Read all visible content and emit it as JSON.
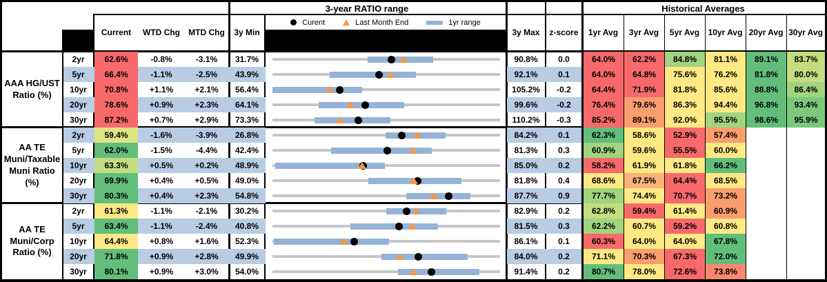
{
  "titles": {
    "range_chart": "3-year RATIO range",
    "historical": "Historical Averages"
  },
  "legend": {
    "current": "Curent",
    "last_month_end": "Last Month End",
    "range_1yr": "1yr range"
  },
  "columns": {
    "current": "Current",
    "wtd": "WTD Chg",
    "mtd": "MTD Chg",
    "min3y": "3y Min",
    "max3y": "3y Max",
    "zscore": "z-score",
    "averages": [
      "1yr Avg",
      "3yr Avg",
      "5yr Avg",
      "10yr Avg",
      "20yr Avg",
      "30yr Avg"
    ]
  },
  "palette": {
    "red": "#F8696B",
    "salmon": "#F9876F",
    "orange": "#FA9D6F",
    "light_orange": "#FBB277",
    "yellow": "#FFE984",
    "pale_yellow_green": "#DDE583",
    "yellow_green": "#C4DD81",
    "light_green": "#A0D47F",
    "medium_green": "#7CC87D",
    "green": "#63BE7B",
    "row_blue": "#B8CCE4",
    "bar_blue": "#95B3D7",
    "line_gray": "#C6C6C8",
    "marker_orange": "#F79646",
    "marker_black": "#000000"
  },
  "chart_data": {
    "type": "table",
    "note_range_plot": "each row range plot spans its own 3y min to 3y max; bar_1yr is the 1yr range band; markers: current (black dot), last_month_end (orange triangle)",
    "groups": [
      {
        "label": "AAA HG/UST\nRatio (%)",
        "rows": [
          {
            "tenor": "2yr",
            "current": "62.6%",
            "current_color": "red",
            "wtd_chg": "-0.8%",
            "mtd_chg": "-3.1%",
            "min_3y": "31.7%",
            "max_3y": "90.8%",
            "z_score": "0.0",
            "averages": [
              {
                "value": "64.0%",
                "color": "red"
              },
              {
                "value": "62.2%",
                "color": "red"
              },
              {
                "value": "84.8%",
                "color": "light_green"
              },
              {
                "value": "81.1%",
                "color": "yellow"
              },
              {
                "value": "89.1%",
                "color": "green"
              },
              {
                "value": "83.7%",
                "color": "yellow_green"
              }
            ],
            "range_plot": {
              "min": 31.7,
              "max": 90.8,
              "current": 62.6,
              "last_month_end": 65.7,
              "bar_1yr": [
                56.4,
                73.4
              ]
            }
          },
          {
            "tenor": "5yr",
            "current": "66.4%",
            "current_color": "red",
            "wtd_chg": "-1.1%",
            "mtd_chg": "-2.5%",
            "min_3y": "43.9%",
            "max_3y": "92.1%",
            "z_score": "0.1",
            "averages": [
              {
                "value": "64.0%",
                "color": "red"
              },
              {
                "value": "64.8%",
                "color": "red"
              },
              {
                "value": "75.6%",
                "color": "yellow"
              },
              {
                "value": "76.2%",
                "color": "yellow"
              },
              {
                "value": "81.8%",
                "color": "green"
              },
              {
                "value": "80.0%",
                "color": "yellow_green"
              }
            ],
            "range_plot": {
              "min": 43.9,
              "max": 92.1,
              "current": 66.4,
              "last_month_end": 68.9,
              "bar_1yr": [
                56.0,
                74.3
              ]
            }
          },
          {
            "tenor": "10yr",
            "current": "70.8%",
            "current_color": "red",
            "wtd_chg": "+1.1%",
            "mtd_chg": "+2.1%",
            "min_3y": "56.4%",
            "max_3y": "105.2%",
            "z_score": "-0.2",
            "averages": [
              {
                "value": "64.4%",
                "color": "red"
              },
              {
                "value": "71.9%",
                "color": "red"
              },
              {
                "value": "81.8%",
                "color": "yellow"
              },
              {
                "value": "85.6%",
                "color": "yellow"
              },
              {
                "value": "88.8%",
                "color": "green"
              },
              {
                "value": "86.4%",
                "color": "light_green"
              }
            ],
            "range_plot": {
              "min": 56.4,
              "max": 105.2,
              "current": 70.8,
              "last_month_end": 68.7,
              "bar_1yr": [
                56.4,
                75.6
              ]
            }
          },
          {
            "tenor": "20yr",
            "current": "78.6%",
            "current_color": "red",
            "wtd_chg": "+0.9%",
            "mtd_chg": "+2.3%",
            "min_3y": "64.1%",
            "max_3y": "99.6%",
            "z_score": "-0.2",
            "averages": [
              {
                "value": "76.4%",
                "color": "red"
              },
              {
                "value": "79.6%",
                "color": "orange"
              },
              {
                "value": "86.3%",
                "color": "yellow"
              },
              {
                "value": "94.4%",
                "color": "yellow"
              },
              {
                "value": "96.8%",
                "color": "green"
              },
              {
                "value": "93.4%",
                "color": "medium_green"
              }
            ],
            "range_plot": {
              "min": 64.1,
              "max": 99.6,
              "current": 78.6,
              "last_month_end": 76.3,
              "bar_1yr": [
                71.3,
                84.7
              ]
            }
          },
          {
            "tenor": "30yr",
            "current": "87.2%",
            "current_color": "red",
            "wtd_chg": "+0.7%",
            "mtd_chg": "+2.9%",
            "min_3y": "73.3%",
            "max_3y": "110.2%",
            "z_score": "-0.3",
            "averages": [
              {
                "value": "85.2%",
                "color": "red"
              },
              {
                "value": "89.1%",
                "color": "orange"
              },
              {
                "value": "92.0%",
                "color": "yellow"
              },
              {
                "value": "95.5%",
                "color": "light_green"
              },
              {
                "value": "98.6%",
                "color": "green"
              },
              {
                "value": "95.9%",
                "color": "medium_green"
              }
            ],
            "range_plot": {
              "min": 73.3,
              "max": 110.2,
              "current": 87.2,
              "last_month_end": 84.3,
              "bar_1yr": [
                80.1,
                92.4
              ]
            }
          }
        ]
      },
      {
        "label": "AA TE\nMuni/Taxable\nMuni Ratio\n(%)",
        "rows": [
          {
            "tenor": "2yr",
            "current": "59.4%",
            "current_color": "pale_yellow_green",
            "wtd_chg": "-1.6%",
            "mtd_chg": "-3.9%",
            "min_3y": "26.8%",
            "max_3y": "84.2%",
            "z_score": "0.1",
            "averages": [
              {
                "value": "62.3%",
                "color": "green"
              },
              {
                "value": "58.6%",
                "color": "yellow"
              },
              {
                "value": "52.9%",
                "color": "red"
              },
              {
                "value": "57.4%",
                "color": "orange"
              },
              {
                "value": "",
                "color": "none"
              },
              {
                "value": "",
                "color": "none"
              }
            ],
            "range_plot": {
              "min": 26.8,
              "max": 84.2,
              "current": 59.4,
              "last_month_end": 63.3,
              "bar_1yr": [
                55.4,
                70.5
              ]
            }
          },
          {
            "tenor": "5yr",
            "current": "62.0%",
            "current_color": "green",
            "wtd_chg": "-1.5%",
            "mtd_chg": "-4.4%",
            "min_3y": "42.4%",
            "max_3y": "81.3%",
            "z_score": "0.3",
            "averages": [
              {
                "value": "60.9%",
                "color": "light_green"
              },
              {
                "value": "59.6%",
                "color": "yellow"
              },
              {
                "value": "55.5%",
                "color": "red"
              },
              {
                "value": "60.0%",
                "color": "yellow"
              },
              {
                "value": "",
                "color": "none"
              },
              {
                "value": "",
                "color": "none"
              }
            ],
            "range_plot": {
              "min": 42.4,
              "max": 81.3,
              "current": 62.0,
              "last_month_end": 66.4,
              "bar_1yr": [
                52.4,
                69.6
              ]
            }
          },
          {
            "tenor": "10yr",
            "current": "63.3%",
            "current_color": "yellow_green",
            "wtd_chg": "+0.5%",
            "mtd_chg": "+0.2%",
            "min_3y": "48.9%",
            "max_3y": "85.0%",
            "z_score": "0.2",
            "averages": [
              {
                "value": "58.2%",
                "color": "red"
              },
              {
                "value": "61.9%",
                "color": "yellow"
              },
              {
                "value": "61.8%",
                "color": "yellow"
              },
              {
                "value": "66.2%",
                "color": "green"
              },
              {
                "value": "",
                "color": "none"
              },
              {
                "value": "",
                "color": "none"
              }
            ],
            "range_plot": {
              "min": 48.9,
              "max": 85.0,
              "current": 63.3,
              "last_month_end": 63.1,
              "bar_1yr": [
                49.3,
                66.7
              ]
            }
          },
          {
            "tenor": "20yr",
            "current": "69.9%",
            "current_color": "green",
            "wtd_chg": "+0.4%",
            "mtd_chg": "+0.5%",
            "min_3y": "49.0%",
            "max_3y": "81.8%",
            "z_score": "0.4",
            "averages": [
              {
                "value": "68.6%",
                "color": "yellow"
              },
              {
                "value": "67.5%",
                "color": "light_orange"
              },
              {
                "value": "64.4%",
                "color": "red"
              },
              {
                "value": "68.5%",
                "color": "yellow"
              },
              {
                "value": "",
                "color": "none"
              },
              {
                "value": "",
                "color": "none"
              }
            ],
            "range_plot": {
              "min": 49.0,
              "max": 81.8,
              "current": 69.9,
              "last_month_end": 69.4,
              "bar_1yr": [
                62.8,
                76.2
              ]
            }
          },
          {
            "tenor": "30yr",
            "current": "80.3%",
            "current_color": "green",
            "wtd_chg": "+0.4%",
            "mtd_chg": "+2.3%",
            "min_3y": "54.8%",
            "max_3y": "87.7%",
            "z_score": "0.9",
            "averages": [
              {
                "value": "77.7%",
                "color": "light_green"
              },
              {
                "value": "74.4%",
                "color": "yellow"
              },
              {
                "value": "70.7%",
                "color": "red"
              },
              {
                "value": "73.2%",
                "color": "orange"
              },
              {
                "value": "",
                "color": "none"
              },
              {
                "value": "",
                "color": "none"
              }
            ],
            "range_plot": {
              "min": 54.8,
              "max": 87.7,
              "current": 80.3,
              "last_month_end": 78.0,
              "bar_1yr": [
                74.1,
                83.4
              ]
            }
          }
        ]
      },
      {
        "label": "AA TE\nMuni/Corp\nRatio (%)",
        "rows": [
          {
            "tenor": "2yr",
            "current": "61.3%",
            "current_color": "yellow",
            "wtd_chg": "-1.1%",
            "mtd_chg": "-2.1%",
            "min_3y": "30.2%",
            "max_3y": "82.9%",
            "z_score": "0.2",
            "averages": [
              {
                "value": "62.8%",
                "color": "yellow_green"
              },
              {
                "value": "59.4%",
                "color": "red"
              },
              {
                "value": "61.4%",
                "color": "yellow"
              },
              {
                "value": "60.9%",
                "color": "orange"
              },
              {
                "value": "",
                "color": "none"
              },
              {
                "value": "",
                "color": "none"
              }
            ],
            "range_plot": {
              "min": 30.2,
              "max": 82.9,
              "current": 61.3,
              "last_month_end": 63.4,
              "bar_1yr": [
                56.5,
                70.5
              ]
            }
          },
          {
            "tenor": "5yr",
            "current": "63.4%",
            "current_color": "green",
            "wtd_chg": "-1.1%",
            "mtd_chg": "-2.4%",
            "min_3y": "40.8%",
            "max_3y": "81.5%",
            "z_score": "0.3",
            "averages": [
              {
                "value": "62.2%",
                "color": "light_green"
              },
              {
                "value": "60.7%",
                "color": "yellow"
              },
              {
                "value": "59.2%",
                "color": "red"
              },
              {
                "value": "60.8%",
                "color": "yellow"
              },
              {
                "value": "",
                "color": "none"
              },
              {
                "value": "",
                "color": "none"
              }
            ],
            "range_plot": {
              "min": 40.8,
              "max": 81.5,
              "current": 63.4,
              "last_month_end": 65.8,
              "bar_1yr": [
                54.7,
                70.4
              ]
            }
          },
          {
            "tenor": "10yr",
            "current": "64.4%",
            "current_color": "yellow",
            "wtd_chg": "+0.8%",
            "mtd_chg": "+1.6%",
            "min_3y": "52.3%",
            "max_3y": "86.1%",
            "z_score": "0.1",
            "averages": [
              {
                "value": "60.3%",
                "color": "red"
              },
              {
                "value": "64.0%",
                "color": "yellow"
              },
              {
                "value": "64.0%",
                "color": "yellow"
              },
              {
                "value": "67.8%",
                "color": "green"
              },
              {
                "value": "",
                "color": "none"
              },
              {
                "value": "",
                "color": "none"
              }
            ],
            "range_plot": {
              "min": 52.3,
              "max": 86.1,
              "current": 64.4,
              "last_month_end": 62.8,
              "bar_1yr": [
                52.5,
                69.6
              ]
            }
          },
          {
            "tenor": "20yr",
            "current": "71.8%",
            "current_color": "green",
            "wtd_chg": "+0.9%",
            "mtd_chg": "+2.8%",
            "min_3y": "49.9%",
            "max_3y": "84.0%",
            "z_score": "0.2",
            "averages": [
              {
                "value": "71.1%",
                "color": "yellow"
              },
              {
                "value": "70.3%",
                "color": "orange"
              },
              {
                "value": "67.3%",
                "color": "red"
              },
              {
                "value": "72.0%",
                "color": "green"
              },
              {
                "value": "",
                "color": "none"
              },
              {
                "value": "",
                "color": "none"
              }
            ],
            "range_plot": {
              "min": 49.9,
              "max": 84.0,
              "current": 71.8,
              "last_month_end": 69.0,
              "bar_1yr": [
                66.2,
                79.1
              ]
            }
          },
          {
            "tenor": "30yr",
            "current": "80.1%",
            "current_color": "green",
            "wtd_chg": "+0.9%",
            "mtd_chg": "+3.0%",
            "min_3y": "54.0%",
            "max_3y": "91.4%",
            "z_score": "0.2",
            "averages": [
              {
                "value": "80.7%",
                "color": "green"
              },
              {
                "value": "78.0%",
                "color": "yellow"
              },
              {
                "value": "72.6%",
                "color": "red"
              },
              {
                "value": "73.8%",
                "color": "salmon"
              },
              {
                "value": "",
                "color": "none"
              },
              {
                "value": "",
                "color": "none"
              }
            ],
            "range_plot": {
              "min": 54.0,
              "max": 91.4,
              "current": 80.1,
              "last_month_end": 77.1,
              "bar_1yr": [
                74.6,
                88.0
              ]
            }
          }
        ]
      }
    ]
  }
}
